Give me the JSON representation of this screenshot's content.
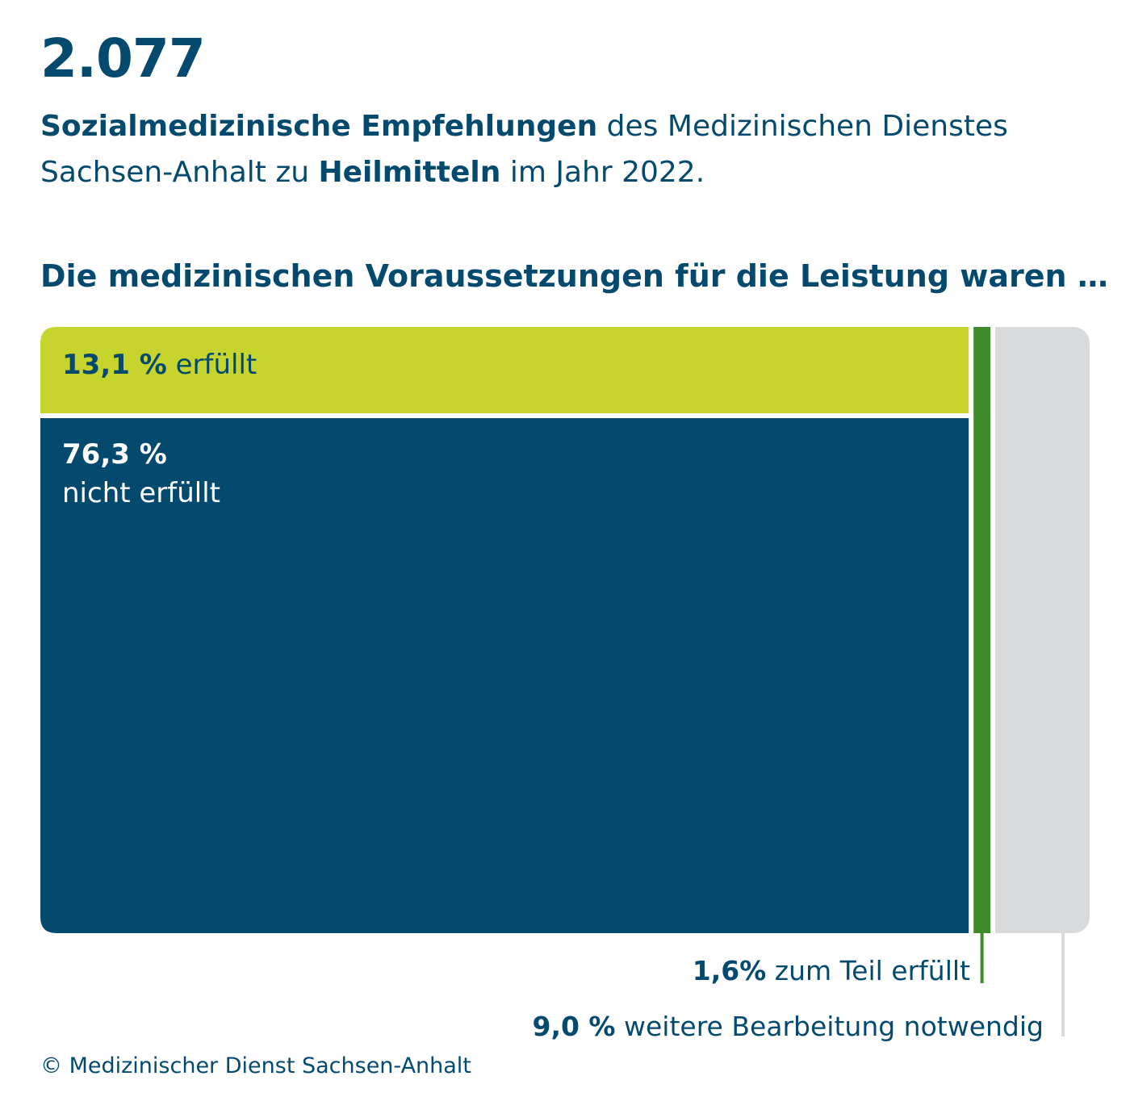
{
  "header": {
    "count": "2.077",
    "line1_bold": "Sozialmedizinische Empfehlungen",
    "line1_rest": " des Medizinischen Dienstes",
    "line2_start": "Sachsen-Anhalt zu ",
    "line2_bold": "Heilmitteln",
    "line2_end": " im Jahr 2022."
  },
  "question": "Die medizinischen Voraussetzungen für die Leistung waren …",
  "chart_data": {
    "type": "treemap",
    "segments": [
      {
        "key": "erfuellt",
        "value": 13.1,
        "value_label": "13,1 %",
        "label": " erfüllt",
        "color": "#c8d42e"
      },
      {
        "key": "nicht_erfuellt",
        "value": 76.3,
        "value_label": "76,3 %",
        "label": "nicht erfüllt",
        "color": "#044a6f"
      },
      {
        "key": "zum_teil",
        "value": 1.6,
        "value_label": "1,6%",
        "label": " zum Teil erfüllt",
        "color": "#3f8a2a"
      },
      {
        "key": "weitere",
        "value": 9.0,
        "value_label": "9,0 %",
        "label": " weitere Bearbeitung notwendig",
        "color": "#d9dadb"
      }
    ]
  },
  "footer": "© Medizinischer Dienst Sachsen-Anhalt"
}
